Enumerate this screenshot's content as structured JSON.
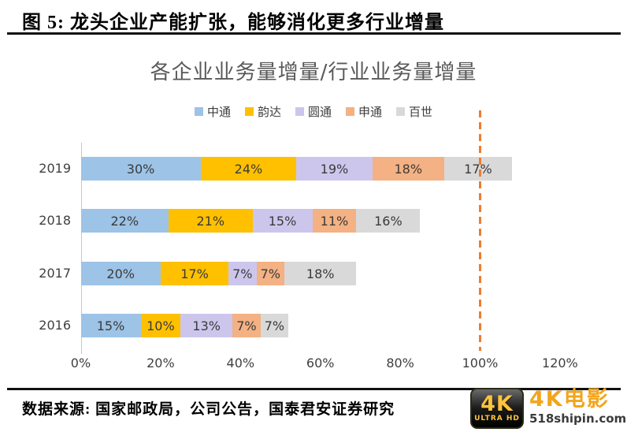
{
  "header": {
    "title": "图 5: 龙头企业产能扩张，能够消化更多行业增量"
  },
  "chart": {
    "title": "各企业业务量增量/行业业务量增量"
  },
  "chart_data": {
    "type": "bar",
    "orientation": "horizontal",
    "stacked": true,
    "title": "各企业业务量增量/行业业务量增量",
    "categories": [
      "2019",
      "2018",
      "2017",
      "2016"
    ],
    "series": [
      {
        "name": "中通",
        "color": "#9DC3E6",
        "values": [
          30,
          22,
          20,
          15
        ]
      },
      {
        "name": "韵达",
        "color": "#FFC000",
        "values": [
          24,
          21,
          17,
          10
        ]
      },
      {
        "name": "圆通",
        "color": "#CDC6EC",
        "values": [
          19,
          15,
          7,
          13
        ]
      },
      {
        "name": "申通",
        "color": "#F4B183",
        "values": [
          18,
          11,
          7,
          7
        ]
      },
      {
        "name": "百世",
        "color": "#D9D9D9",
        "values": [
          17,
          16,
          18,
          7
        ]
      }
    ],
    "value_suffix": "%",
    "xlim": [
      0,
      120
    ],
    "x_ticks": [
      {
        "value": 0,
        "label": "0%"
      },
      {
        "value": 20,
        "label": "20%"
      },
      {
        "value": 40,
        "label": "40%"
      },
      {
        "value": 60,
        "label": "60%"
      },
      {
        "value": 80,
        "label": "80%"
      },
      {
        "value": 100,
        "label": "100%"
      },
      {
        "value": 120,
        "label": "120%"
      }
    ],
    "ref_line": {
      "value": 100,
      "color": "#ED7D31",
      "style": "dashed"
    },
    "legend_position": "top",
    "grid": false
  },
  "footer": {
    "source": "数据来源: 国家邮政局，公司公告，国泰君安证券研究"
  },
  "watermark": {
    "badge_main": "4K",
    "badge_sub": "ULTRA HD",
    "title": "4K电影",
    "site": "518shipin.com",
    "accent_color": "#F2A51C"
  }
}
